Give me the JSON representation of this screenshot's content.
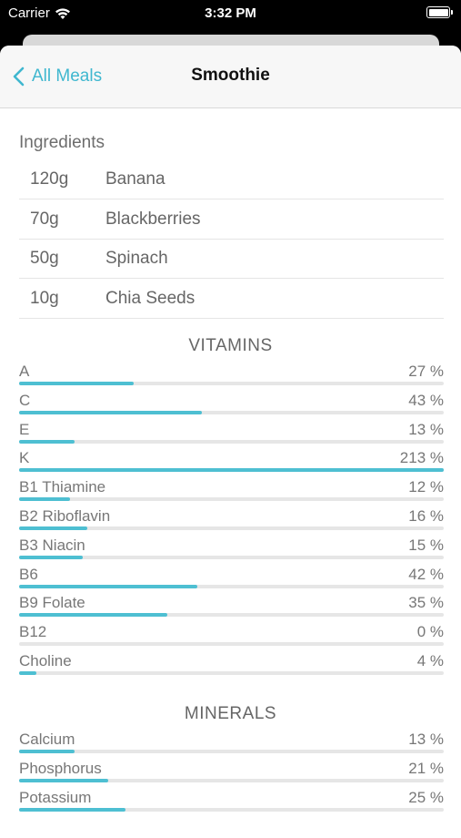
{
  "status": {
    "carrier": "Carrier",
    "time": "3:32 PM"
  },
  "nav": {
    "back_label": "All Meals",
    "title": "Smoothie"
  },
  "ingredients": {
    "title": "Ingredients",
    "items": [
      {
        "qty": "120g",
        "name": "Banana"
      },
      {
        "qty": "70g",
        "name": "Blackberries"
      },
      {
        "qty": "50g",
        "name": "Spinach"
      },
      {
        "qty": "10g",
        "name": "Chia Seeds"
      }
    ]
  },
  "vitamins": {
    "title": "VITAMINS",
    "items": [
      {
        "label": "A",
        "value": "27 %",
        "pct": 27
      },
      {
        "label": "C",
        "value": "43 %",
        "pct": 43
      },
      {
        "label": "E",
        "value": "13 %",
        "pct": 13
      },
      {
        "label": "K",
        "value": "213 %",
        "pct": 213
      },
      {
        "label": "B1 Thiamine",
        "value": "12 %",
        "pct": 12
      },
      {
        "label": "B2 Riboflavin",
        "value": "16 %",
        "pct": 16
      },
      {
        "label": "B3 Niacin",
        "value": "15 %",
        "pct": 15
      },
      {
        "label": "B6",
        "value": "42 %",
        "pct": 42
      },
      {
        "label": "B9 Folate",
        "value": "35 %",
        "pct": 35
      },
      {
        "label": "B12",
        "value": "0 %",
        "pct": 0
      },
      {
        "label": "Choline",
        "value": "4 %",
        "pct": 4
      }
    ]
  },
  "minerals": {
    "title": "MINERALS",
    "items": [
      {
        "label": "Calcium",
        "value": "13 %",
        "pct": 13
      },
      {
        "label": "Phosphorus",
        "value": "21 %",
        "pct": 21
      },
      {
        "label": "Potassium",
        "value": "25 %",
        "pct": 25
      }
    ]
  },
  "colors": {
    "accent": "#3fb7cf",
    "bar": "#4ebfd2",
    "track": "#e6e6e6"
  }
}
